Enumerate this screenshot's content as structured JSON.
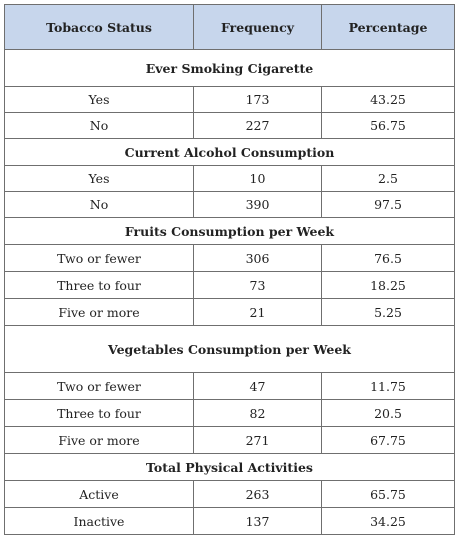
{
  "headers": [
    "Tobacco Status",
    "Frequency",
    "Percentage"
  ],
  "sections": [
    {
      "title": "Ever Smoking Cigarette",
      "rows": [
        [
          "Yes",
          "173",
          "43.25"
        ],
        [
          "No",
          "227",
          "56.75"
        ]
      ]
    },
    {
      "title": "Current Alcohol Consumption",
      "rows": [
        [
          "Yes",
          "10",
          "2.5"
        ],
        [
          "No",
          "390",
          "97.5"
        ]
      ]
    },
    {
      "title": "Fruits Consumption per Week",
      "rows": [
        [
          "Two or fewer",
          "306",
          "76.5"
        ],
        [
          "Three to four",
          "73",
          "18.25"
        ],
        [
          "Five or more",
          "21",
          "5.25"
        ]
      ]
    },
    {
      "title": "Vegetables Consumption per Week",
      "rows": [
        [
          "Two or fewer",
          "47",
          "11.75"
        ],
        [
          "Three to four",
          "82",
          "20.5"
        ],
        [
          "Five or more",
          "271",
          "67.75"
        ]
      ]
    },
    {
      "title": "Total Physical Activities",
      "rows": [
        [
          "Active",
          "263",
          "65.75"
        ],
        [
          "Inactive",
          "137",
          "34.25"
        ]
      ]
    }
  ]
}
